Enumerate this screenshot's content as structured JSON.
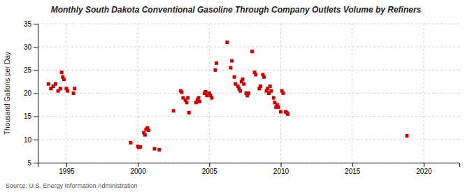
{
  "chart_data": {
    "type": "scatter",
    "title": "Monthly South Dakota Conventional Gasoline Through Company Outlets Volume by Refiners",
    "ylabel": "Thousand Gallons per Day",
    "source": "Source: U.S. Energy Information Administration",
    "color": "#cc0000",
    "marker": "square",
    "grid": true,
    "xlim": [
      1993.0,
      2022.5
    ],
    "xticks": [
      1995,
      2000,
      2005,
      2010,
      2015,
      2020
    ],
    "ylim": [
      5,
      35
    ],
    "yticks": [
      5,
      10,
      15,
      20,
      25,
      30,
      35
    ],
    "x": [
      1993.75,
      1993.92,
      1994.08,
      1994.25,
      1994.42,
      1994.58,
      1994.67,
      1994.75,
      1994.83,
      1995.0,
      1995.08,
      1995.5,
      1995.58,
      1999.5,
      2000.0,
      2000.08,
      2000.17,
      2000.42,
      2000.5,
      2000.58,
      2000.67,
      2000.75,
      2001.17,
      2001.5,
      2002.5,
      2003.0,
      2003.08,
      2003.17,
      2003.33,
      2003.42,
      2003.5,
      2003.58,
      2004.08,
      2004.17,
      2004.25,
      2004.33,
      2004.67,
      2004.75,
      2004.83,
      2005.0,
      2005.08,
      2005.17,
      2005.42,
      2005.5,
      2006.25,
      2006.5,
      2006.58,
      2006.75,
      2006.83,
      2007.0,
      2007.08,
      2007.17,
      2007.25,
      2007.33,
      2007.42,
      2007.58,
      2007.67,
      2007.75,
      2008.0,
      2008.17,
      2008.25,
      2008.5,
      2008.58,
      2008.75,
      2008.83,
      2009.0,
      2009.08,
      2009.17,
      2009.25,
      2009.33,
      2009.5,
      2009.58,
      2009.67,
      2009.75,
      2009.83,
      2010.0,
      2010.08,
      2010.17,
      2010.33,
      2010.42,
      2010.5,
      2018.83
    ],
    "values": [
      22.0,
      21.0,
      21.5,
      22.0,
      20.5,
      21.0,
      24.5,
      23.5,
      23.0,
      21.0,
      20.5,
      20.0,
      21.0,
      9.3,
      8.5,
      8.3,
      8.4,
      11.5,
      11.0,
      12.2,
      12.5,
      12.0,
      8.0,
      7.8,
      16.2,
      20.5,
      20.2,
      19.0,
      18.5,
      18.0,
      19.0,
      15.8,
      18.0,
      18.5,
      19.0,
      18.2,
      20.0,
      20.3,
      19.5,
      20.0,
      19.5,
      19.0,
      25.0,
      26.5,
      31.0,
      25.5,
      27.0,
      23.5,
      22.0,
      21.5,
      21.0,
      20.5,
      22.5,
      23.0,
      22.0,
      20.0,
      19.5,
      20.0,
      29.0,
      24.5,
      24.0,
      21.0,
      21.5,
      24.0,
      23.5,
      20.5,
      21.0,
      20.0,
      21.5,
      20.5,
      19.0,
      18.0,
      17.0,
      17.5,
      17.0,
      16.0,
      20.5,
      20.0,
      16.0,
      15.8,
      15.5,
      10.8
    ]
  }
}
